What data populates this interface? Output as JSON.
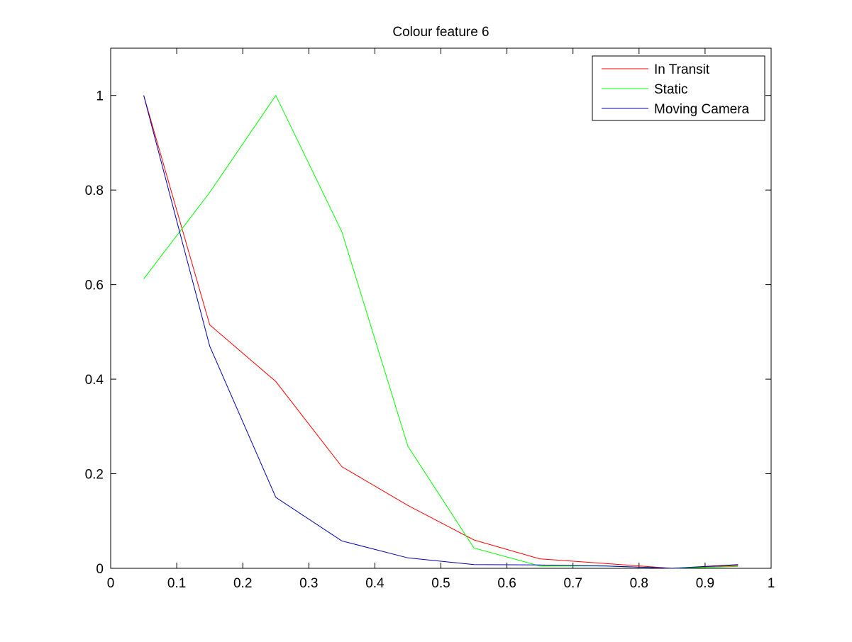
{
  "chart_data": {
    "type": "line",
    "title": "Colour feature 6",
    "xlabel": "",
    "ylabel": "",
    "xlim": [
      0,
      1
    ],
    "ylim": [
      0,
      1.1
    ],
    "xticks": [
      0,
      0.1,
      0.2,
      0.3,
      0.4,
      0.5,
      0.6,
      0.7,
      0.8,
      0.9,
      1
    ],
    "xtick_labels": [
      "0",
      "0.1",
      "0.2",
      "0.3",
      "0.4",
      "0.5",
      "0.6",
      "0.7",
      "0.8",
      "0.9",
      "1"
    ],
    "yticks": [
      0,
      0.2,
      0.4,
      0.6,
      0.8,
      1
    ],
    "ytick_labels": [
      "0",
      "0.2",
      "0.4",
      "0.6",
      "0.8",
      "1"
    ],
    "grid": false,
    "legend_position": "top-right",
    "x": [
      0.05,
      0.15,
      0.25,
      0.35,
      0.45,
      0.55,
      0.65,
      0.75,
      0.85,
      0.95
    ],
    "series": [
      {
        "name": "In Transit",
        "color": "#ff0000",
        "values": [
          1.0,
          0.515,
          0.395,
          0.215,
          0.133,
          0.06,
          0.02,
          0.01,
          0.0,
          0.006
        ]
      },
      {
        "name": "Static",
        "color": "#00ff00",
        "values": [
          0.612,
          0.795,
          1.0,
          0.712,
          0.258,
          0.043,
          0.005,
          0.005,
          0.0,
          0.004
        ]
      },
      {
        "name": "Moving Camera",
        "color": "#0000aa",
        "values": [
          1.0,
          0.47,
          0.15,
          0.058,
          0.022,
          0.008,
          0.007,
          0.005,
          0.0,
          0.008
        ]
      }
    ]
  }
}
